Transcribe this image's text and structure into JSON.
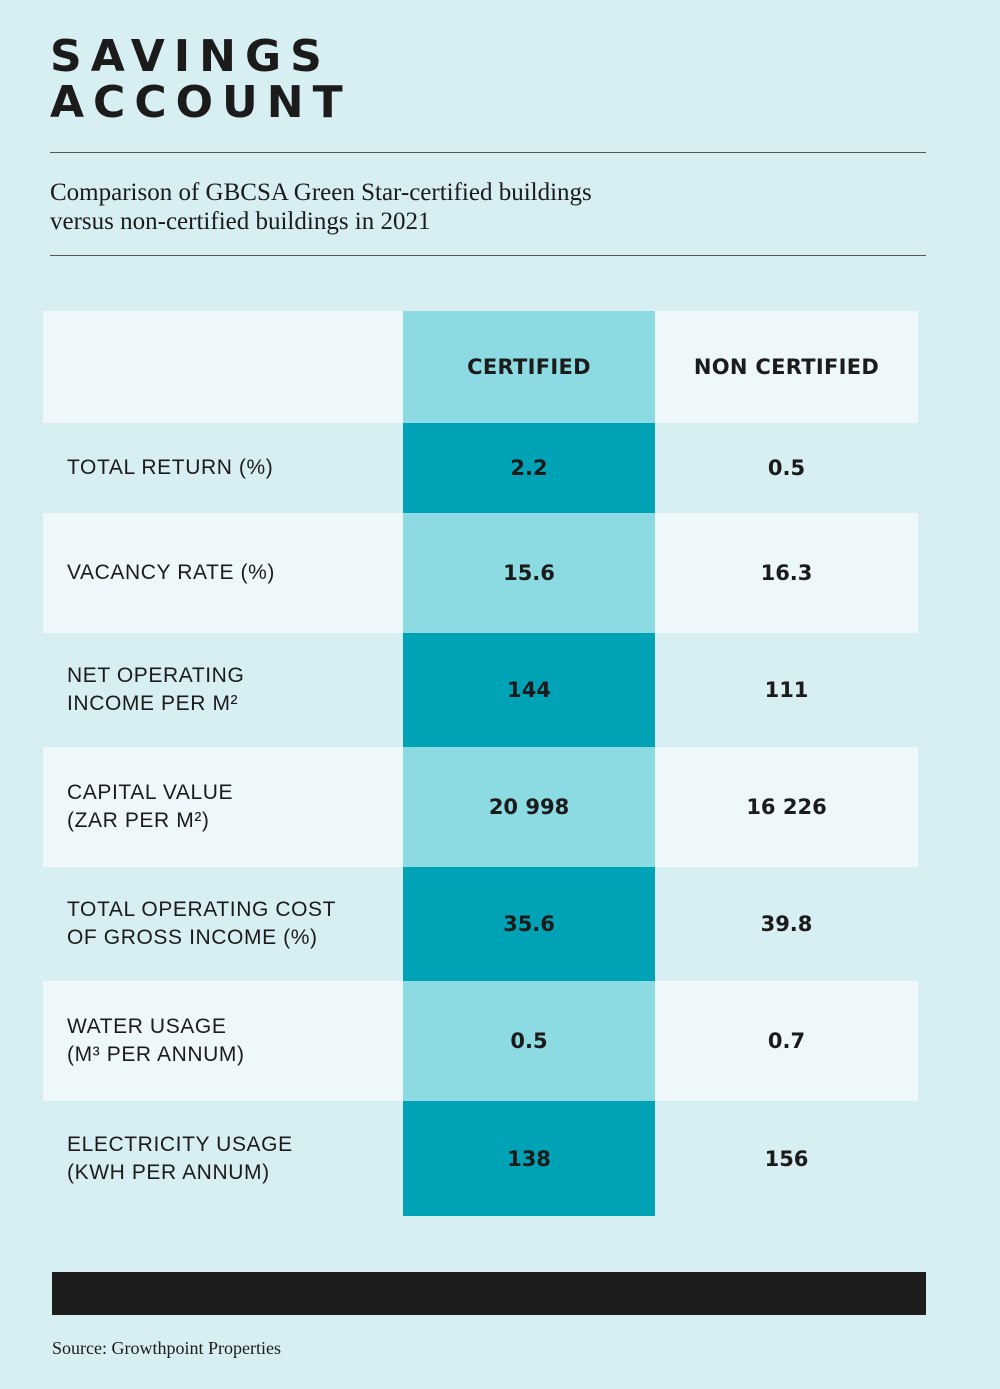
{
  "header": {
    "title_lines": [
      "SAVINGS",
      "ACCOUNT"
    ],
    "subtitle_lines": [
      "Comparison of GBCSA Green Star-certified buildings",
      "versus non-certified buildings in 2021"
    ]
  },
  "table": {
    "columns": [
      "CERTIFIED",
      "NON CERTIFIED"
    ],
    "rows": [
      {
        "label_lines": [
          "TOTAL RETURN (%)"
        ],
        "certified": "2.2",
        "non_certified": "0.5"
      },
      {
        "label_lines": [
          "VACANCY RATE (%)"
        ],
        "certified": "15.6",
        "non_certified": "16.3"
      },
      {
        "label_lines": [
          "NET OPERATING",
          "INCOME PER M²"
        ],
        "certified": "144",
        "non_certified": "111"
      },
      {
        "label_lines": [
          "CAPITAL VALUE",
          "(ZAR PER M²)"
        ],
        "certified": "20 998",
        "non_certified": "16 226"
      },
      {
        "label_lines": [
          "TOTAL OPERATING COST",
          "OF GROSS INCOME (%)"
        ],
        "certified": "35.6",
        "non_certified": "39.8"
      },
      {
        "label_lines": [
          "WATER USAGE",
          "(M³ PER ANNUM)"
        ],
        "certified": "0.5",
        "non_certified": "0.7"
      },
      {
        "label_lines": [
          "ELECTRICITY USAGE",
          "(KWH PER ANNUM)"
        ],
        "certified": "138",
        "non_certified": "156"
      }
    ]
  },
  "footer": {
    "source": "Source: Growthpoint Properties"
  }
}
